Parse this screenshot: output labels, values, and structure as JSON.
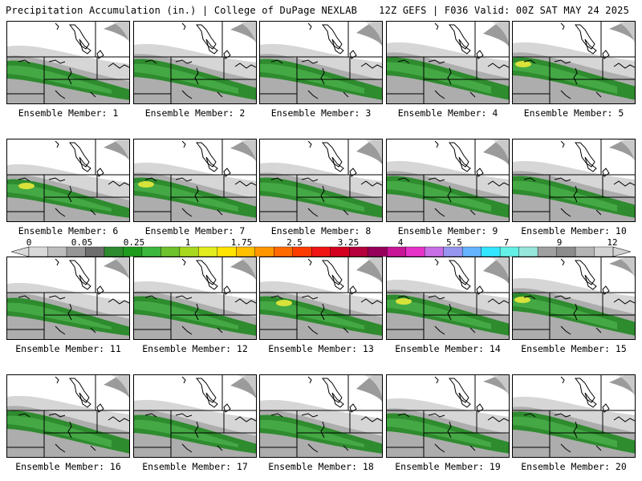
{
  "header": {
    "title_left": "Precipitation Accumulation (in.) | College of DuPage NEXLAB",
    "title_right": "12Z GEFS | F036 Valid: 00Z SAT MAY 24 2025"
  },
  "colorbar": {
    "labels": [
      "0",
      "0.05",
      "0.25",
      "1",
      "1.75",
      "2.5",
      "3.25",
      "4",
      "5.5",
      "7",
      "9",
      "12"
    ],
    "colors": [
      "#d9d9d9",
      "#bdbdbd",
      "#969696",
      "#6e6e6e",
      "#2e8b2e",
      "#1e9a1e",
      "#3cb83c",
      "#6ec22c",
      "#a8d81e",
      "#e2ec1c",
      "#ffe400",
      "#ffc000",
      "#ff9600",
      "#ff6a00",
      "#ff3c00",
      "#f01414",
      "#d2001e",
      "#b4003c",
      "#96005a",
      "#c81496",
      "#e632c8",
      "#c86ee6",
      "#9696f0",
      "#64b4ff",
      "#32e6ff",
      "#64f0e6",
      "#96e6dc",
      "#a0a0a0",
      "#8c8c8c",
      "#b4b4b4",
      "#d2d2d2"
    ]
  },
  "panels": [
    {
      "label": "Ensemble Member: 1"
    },
    {
      "label": "Ensemble Member: 2"
    },
    {
      "label": "Ensemble Member: 3"
    },
    {
      "label": "Ensemble Member: 4"
    },
    {
      "label": "Ensemble Member: 5"
    },
    {
      "label": "Ensemble Member: 6"
    },
    {
      "label": "Ensemble Member: 7"
    },
    {
      "label": "Ensemble Member: 8"
    },
    {
      "label": "Ensemble Member: 9"
    },
    {
      "label": "Ensemble Member: 10"
    },
    {
      "label": "Ensemble Member: 11"
    },
    {
      "label": "Ensemble Member: 12"
    },
    {
      "label": "Ensemble Member: 13"
    },
    {
      "label": "Ensemble Member: 14"
    },
    {
      "label": "Ensemble Member: 15"
    },
    {
      "label": "Ensemble Member: 16"
    },
    {
      "label": "Ensemble Member: 17"
    },
    {
      "label": "Ensemble Member: 18"
    },
    {
      "label": "Ensemble Member: 19"
    },
    {
      "label": "Ensemble Member: 20"
    }
  ]
}
